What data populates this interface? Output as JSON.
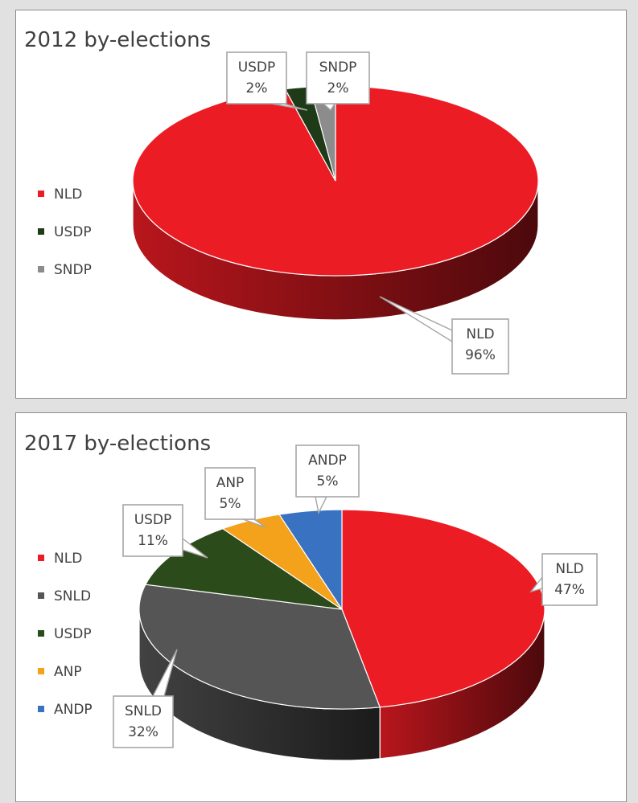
{
  "chart_data": [
    {
      "type": "pie",
      "title": "2012 by-elections",
      "categories": [
        "NLD",
        "USDP",
        "SNDP"
      ],
      "values": [
        96,
        2,
        2
      ],
      "unit": "%",
      "labels": [
        {
          "name": "NLD",
          "text": "96%"
        },
        {
          "name": "USDP",
          "text": "2%"
        },
        {
          "name": "SNDP",
          "text": "2%"
        }
      ],
      "legend": [
        "NLD",
        "USDP",
        "SNDP"
      ],
      "legend_position": "left",
      "colors": [
        "#ec1c24",
        "#1e3a17",
        "#8c8c8c"
      ]
    },
    {
      "type": "pie",
      "title": "2017 by-elections",
      "categories": [
        "NLD",
        "SNLD",
        "USDP",
        "ANP",
        "ANDP"
      ],
      "values": [
        47,
        32,
        11,
        5,
        5
      ],
      "unit": "%",
      "labels": [
        {
          "name": "NLD",
          "text": "47%"
        },
        {
          "name": "SNLD",
          "text": "32%"
        },
        {
          "name": "USDP",
          "text": "11%"
        },
        {
          "name": "ANP",
          "text": "5%"
        },
        {
          "name": "ANDP",
          "text": "5%"
        }
      ],
      "legend": [
        "NLD",
        "SNLD",
        "USDP",
        "ANP",
        "ANDP"
      ],
      "legend_position": "left",
      "colors": [
        "#ec1c24",
        "#555555",
        "#2b4b1b",
        "#f4a11b",
        "#3a72c2"
      ]
    }
  ]
}
